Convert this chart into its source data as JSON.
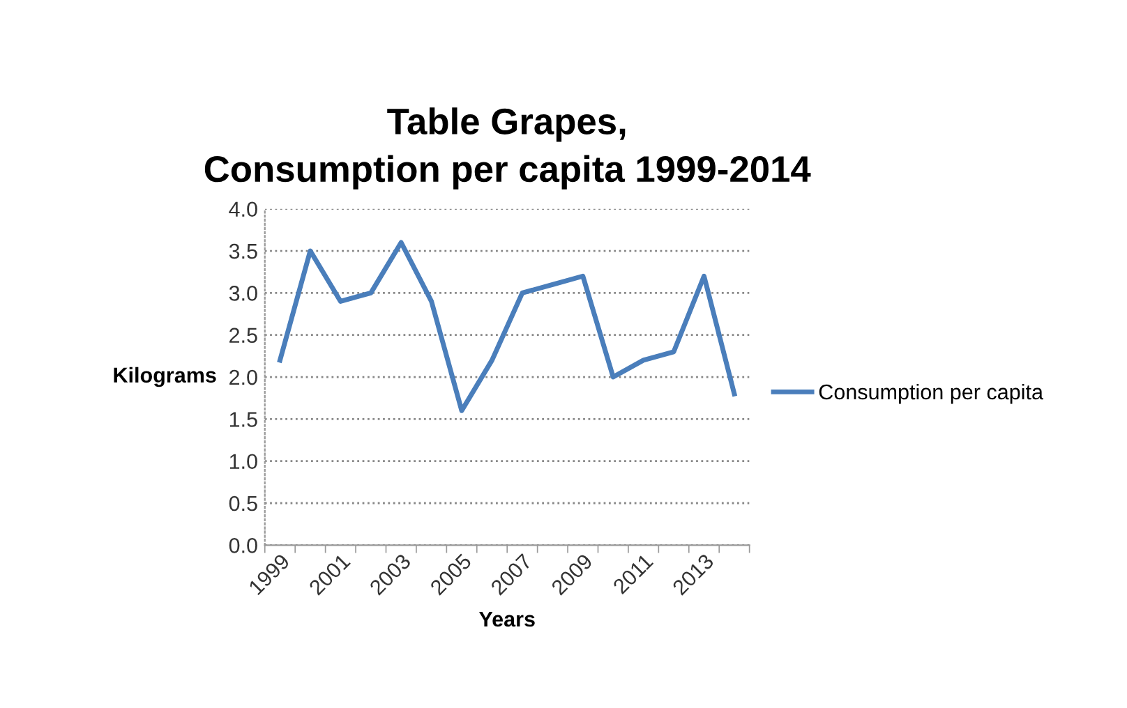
{
  "chart_data": {
    "type": "line",
    "title": "Table Grapes,\nConsumption per capita 1999-2014",
    "xlabel": "Years",
    "ylabel": "Kilograms",
    "categories": [
      "1999",
      null,
      "2001",
      null,
      "2003",
      null,
      "2005",
      null,
      "2007",
      null,
      "2009",
      null,
      "2011",
      null,
      "2013",
      null
    ],
    "series": [
      {
        "name": "Consumption per capita",
        "color": "#4a7ebb",
        "values": [
          2.2,
          3.5,
          2.9,
          3.0,
          3.6,
          2.9,
          1.6,
          2.2,
          3.0,
          3.1,
          3.2,
          2.0,
          2.2,
          2.3,
          3.2,
          1.8
        ]
      }
    ],
    "ylim": [
      0,
      4
    ],
    "yticks": [
      {
        "value": 0,
        "label": "0.0"
      },
      {
        "value": 0.5,
        "label": "0.5"
      },
      {
        "value": 1,
        "label": "1.0"
      },
      {
        "value": 1.5,
        "label": "1.5"
      },
      {
        "value": 2,
        "label": "2.0"
      },
      {
        "value": 2.5,
        "label": "2.5"
      },
      {
        "value": 3,
        "label": "3.0"
      },
      {
        "value": 3.5,
        "label": "3.5"
      },
      {
        "value": 4,
        "label": "4.0"
      }
    ],
    "grid": "y",
    "legend": "right",
    "marker": "none",
    "line_style": "solid"
  }
}
